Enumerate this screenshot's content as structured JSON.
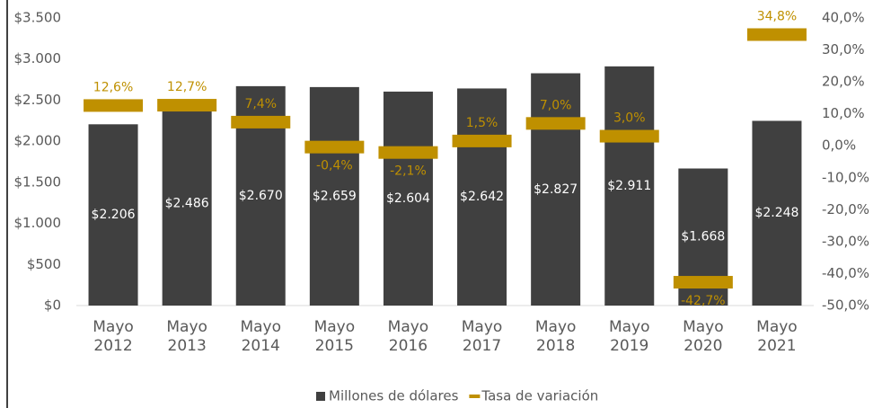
{
  "chart_data": {
    "type": "bar-line",
    "categories": [
      "Mayo 2012",
      "Mayo 2013",
      "Mayo 2014",
      "Mayo 2015",
      "Mayo 2016",
      "Mayo 2017",
      "Mayo 2018",
      "Mayo 2019",
      "Mayo 2020",
      "Mayo 2021"
    ],
    "series": [
      {
        "name": "Millones de dólares",
        "color": "#404040",
        "type": "bar",
        "values": [
          2206,
          2486,
          2670,
          2659,
          2604,
          2642,
          2827,
          2911,
          1668,
          2248
        ],
        "value_labels": [
          "$2.206",
          "$2.486",
          "$2.670",
          "$2.659",
          "$2.604",
          "$2.642",
          "$2.827",
          "$2.911",
          "$1.668",
          "$2.248"
        ]
      },
      {
        "name": "Tasa de variación",
        "color": "#bf9000",
        "type": "marker",
        "axis": "y2",
        "values": [
          12.6,
          12.7,
          7.4,
          -0.4,
          -2.1,
          1.5,
          7.0,
          3.0,
          -42.7,
          34.8
        ],
        "value_labels": [
          "12,6%",
          "12,7%",
          "7,4%",
          "-0,4%",
          "-2,1%",
          "1,5%",
          "7,0%",
          "3,0%",
          "-42,7%",
          "34,8%"
        ]
      }
    ],
    "ylim": [
      0,
      3500
    ],
    "yticks": [
      {
        "value": 0,
        "label": "$0"
      },
      {
        "value": 500,
        "label": "$500"
      },
      {
        "value": 1000,
        "label": "$1.000"
      },
      {
        "value": 1500,
        "label": "$1.500"
      },
      {
        "value": 2000,
        "label": "$2.000"
      },
      {
        "value": 2500,
        "label": "$2.500"
      },
      {
        "value": 3000,
        "label": "$3.000"
      },
      {
        "value": 3500,
        "label": "$3.500"
      }
    ],
    "y2lim": [
      -50,
      40
    ],
    "y2ticks": [
      {
        "value": -50,
        "label": "-50,0%"
      },
      {
        "value": -40,
        "label": "-40,0%"
      },
      {
        "value": -30,
        "label": "-30,0%"
      },
      {
        "value": -20,
        "label": "-20,0%"
      },
      {
        "value": -10,
        "label": "-10,0%"
      },
      {
        "value": 0,
        "label": "0,0%"
      },
      {
        "value": 10,
        "label": "10,0%"
      },
      {
        "value": 20,
        "label": "20,0%"
      },
      {
        "value": 30,
        "label": "30,0%"
      },
      {
        "value": 40,
        "label": "40,0%"
      }
    ],
    "legend": "bottom"
  }
}
